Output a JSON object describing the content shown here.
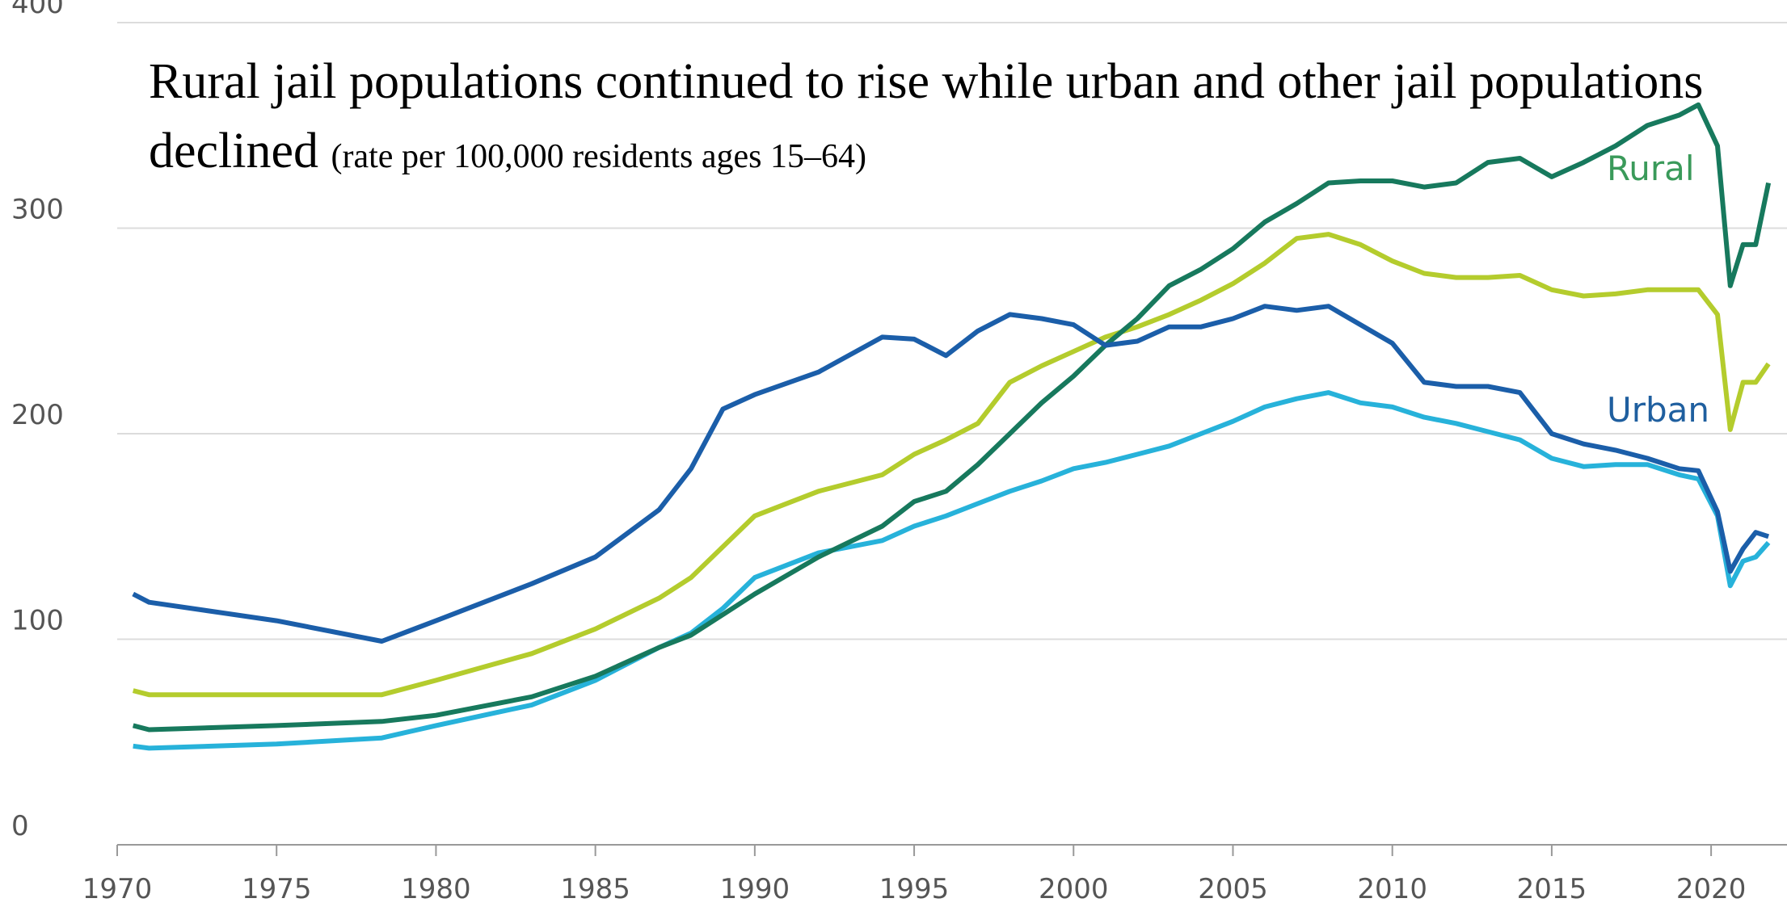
{
  "chart_data": {
    "type": "line",
    "title": "Rural jail populations continued to rise while urban and other jail populations declined",
    "subtitle": "(rate per 100,000 residents ages 15–64)",
    "x": [
      1970.5,
      1971,
      1975,
      1978.3,
      1980,
      1983,
      1985,
      1987,
      1988,
      1989,
      1990,
      1992,
      1994,
      1995,
      1996,
      1997,
      1998,
      1999,
      2000,
      2001,
      2002,
      2003,
      2004,
      2005,
      2006,
      2007,
      2008,
      2009,
      2010,
      2011,
      2012,
      2013,
      2014,
      2015,
      2016,
      2017,
      2018,
      2019,
      2019.6,
      2020.2,
      2020.6,
      2021,
      2021.4,
      2021.8
    ],
    "series": [
      {
        "name": "Urban",
        "color": "#1b5ea9",
        "label_color": "#1f5f9f",
        "values": [
          122,
          118,
          109,
          99,
          109,
          127,
          140,
          163,
          183,
          212,
          219,
          230,
          247,
          246,
          238,
          250,
          258,
          256,
          253,
          243,
          245,
          252,
          252,
          256,
          262,
          260,
          262,
          253,
          244,
          225,
          223,
          223,
          220,
          200,
          195,
          192,
          188,
          183,
          182,
          162,
          133,
          144,
          152,
          150
        ]
      },
      {
        "name": "Rural",
        "color": "#17795d",
        "label_color": "#3a9a5a",
        "values": [
          58,
          56,
          58,
          60,
          63,
          72,
          82,
          96,
          102,
          112,
          122,
          140,
          155,
          167,
          172,
          185,
          200,
          215,
          228,
          243,
          256,
          272,
          280,
          290,
          303,
          312,
          322,
          323,
          323,
          320,
          322,
          332,
          334,
          325,
          332,
          340,
          350,
          355,
          360,
          340,
          272,
          292,
          292,
          322
        ]
      },
      {
        "color": "#b4cc2d",
        "values": [
          75,
          73,
          73,
          73,
          80,
          93,
          105,
          120,
          130,
          145,
          160,
          172,
          180,
          190,
          197,
          205,
          225,
          233,
          240,
          247,
          252,
          258,
          265,
          273,
          283,
          295,
          297,
          292,
          284,
          278,
          276,
          276,
          277,
          270,
          267,
          268,
          270,
          270,
          270,
          258,
          202,
          225,
          225,
          234
        ]
      },
      {
        "color": "#27b2da",
        "values": [
          48,
          47,
          49,
          52,
          58,
          68,
          80,
          96,
          103,
          115,
          130,
          142,
          148,
          155,
          160,
          166,
          172,
          177,
          183,
          186,
          190,
          194,
          200,
          206,
          213,
          217,
          220,
          215,
          213,
          208,
          205,
          201,
          197,
          188,
          184,
          185,
          185,
          180,
          178,
          160,
          126,
          138,
          140,
          147
        ]
      }
    ],
    "xlim": [
      1970,
      2022
    ],
    "xticks": [
      1970,
      1975,
      1980,
      1985,
      1990,
      1995,
      2000,
      2005,
      2010,
      2015,
      2020
    ],
    "ylim": [
      0,
      400
    ],
    "yticks": [
      0,
      100,
      200,
      300,
      400
    ],
    "grid": true
  }
}
